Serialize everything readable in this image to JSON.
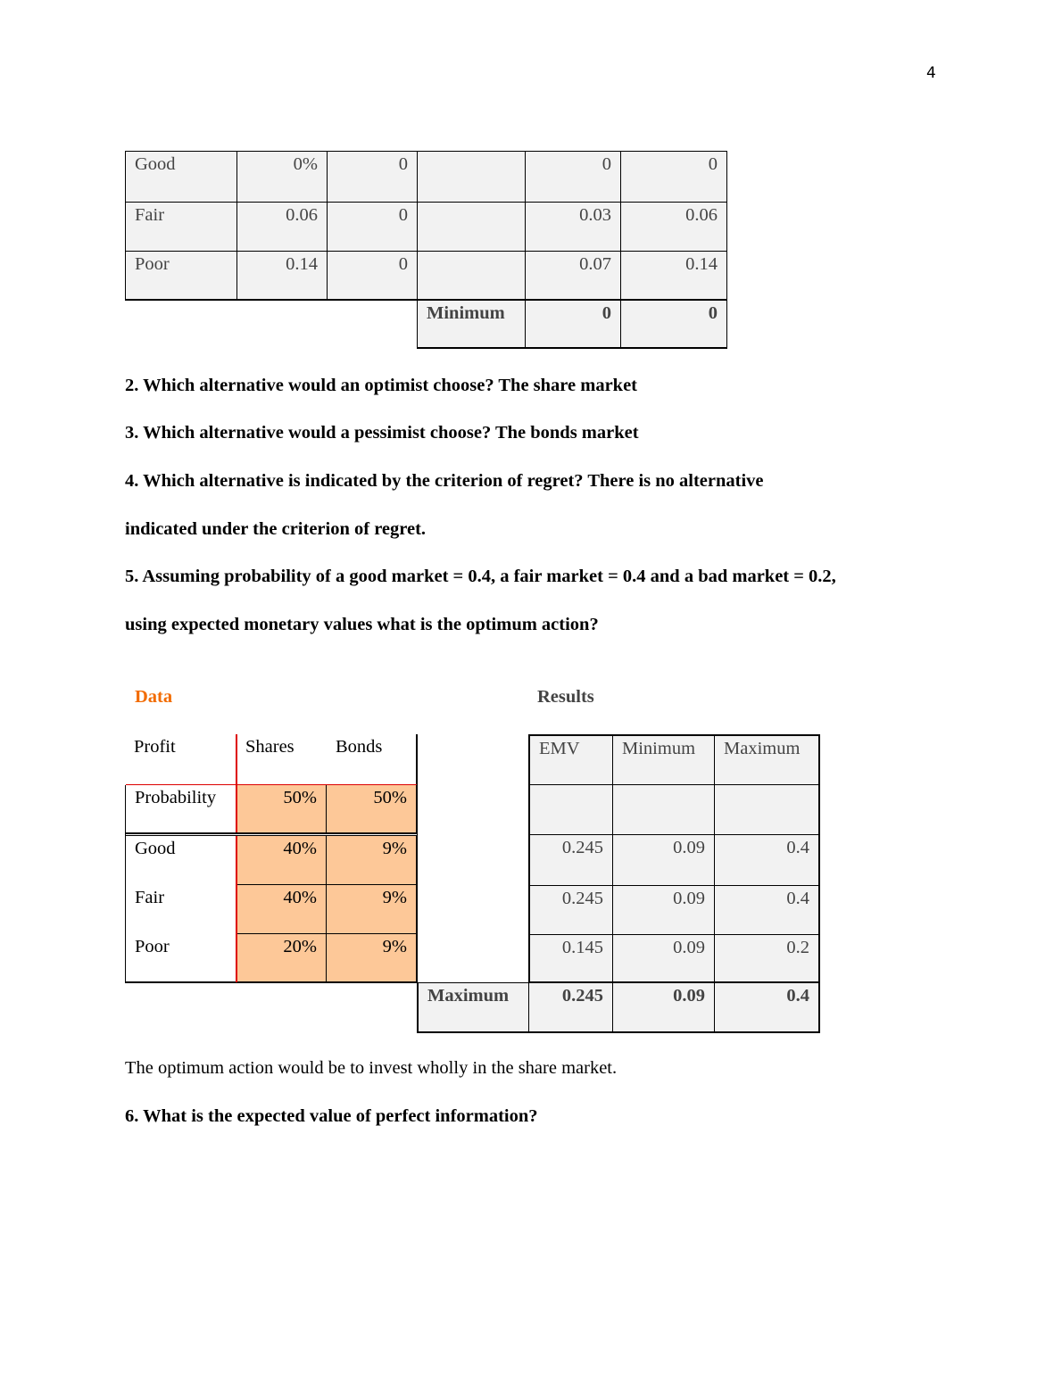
{
  "page_number": "4",
  "regret_table": {
    "rows": [
      {
        "label": "Good",
        "c1": "0%",
        "c2": "0",
        "c3": "",
        "c4": "0",
        "c5": "0"
      },
      {
        "label": "Fair",
        "c1": "0.06",
        "c2": "0",
        "c3": "",
        "c4": "0.03",
        "c5": "0.06"
      },
      {
        "label": "Poor",
        "c1": "0.14",
        "c2": "0",
        "c3": "",
        "c4": "0.07",
        "c5": "0.14"
      }
    ],
    "summary": {
      "label": "Minimum",
      "c4": "0",
      "c5": "0"
    }
  },
  "questions": {
    "q2": "2. Which alternative would an optimist choose? The share market",
    "q3": "3. Which alternative would a pessimist choose? The bonds market",
    "q4a": "4. Which alternative is indicated by the criterion of regret? There is no alternative",
    "q4b": "indicated under the criterion of regret.",
    "q5a": "5. Assuming probability of a good market = 0.4, a fair market = 0.4 and a bad market = 0.2,",
    "q5b": "using expected monetary values what is the optimum action?",
    "answer5": "The optimum action would be to invest wholly in the share market.",
    "q6": "6. What is the expected value of perfect information?"
  },
  "data_table": {
    "title": "Data",
    "title_color": "#f26b00",
    "headers": [
      "Profit",
      "Shares",
      "Bonds"
    ],
    "probability": {
      "label": "Probability",
      "shares": "50%",
      "bonds": "50%"
    },
    "rows": [
      {
        "label": "Good",
        "shares": "40%",
        "bonds": "9%"
      },
      {
        "label": "Fair",
        "shares": "40%",
        "bonds": "9%"
      },
      {
        "label": "Poor",
        "shares": "20%",
        "bonds": "9%"
      }
    ]
  },
  "results_table": {
    "title": "Results",
    "headers": [
      "EMV",
      "Minimum",
      "Maximum"
    ],
    "rows": [
      {
        "emv": "0.245",
        "min": "0.09",
        "max": "0.4"
      },
      {
        "emv": "0.245",
        "min": "0.09",
        "max": "0.4"
      },
      {
        "emv": "0.145",
        "min": "0.09",
        "max": "0.2"
      }
    ],
    "summary": {
      "label": "Maximum",
      "emv": "0.245",
      "min": "0.09",
      "max": "0.4"
    }
  }
}
